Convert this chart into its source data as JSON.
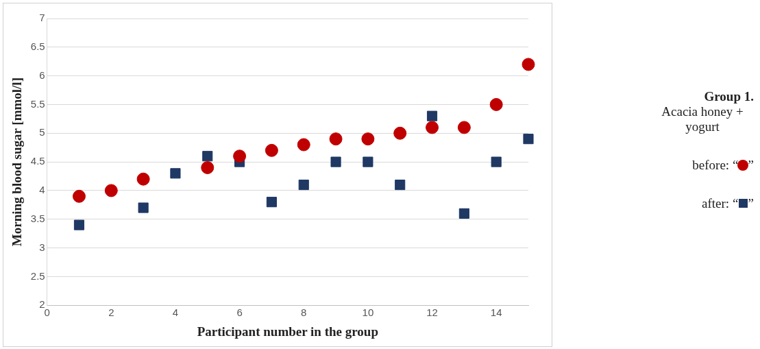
{
  "chart_data": {
    "type": "scatter",
    "xlabel": "Participant number in the group",
    "ylabel": "Morning blood sugar [mmol/l]",
    "x": [
      1,
      2,
      3,
      4,
      5,
      6,
      7,
      8,
      9,
      10,
      11,
      12,
      13,
      14,
      15
    ],
    "series": [
      {
        "name": "before: “   ”",
        "color": "#c00000",
        "marker": "circle",
        "values": [
          3.9,
          4.0,
          4.2,
          null,
          4.4,
          4.6,
          4.7,
          4.8,
          4.9,
          4.9,
          5.0,
          5.1,
          5.1,
          5.5,
          6.2
        ]
      },
      {
        "name": "after: “   ”",
        "color": "#1f3864",
        "marker": "square",
        "values": [
          3.4,
          null,
          3.7,
          4.3,
          4.6,
          4.5,
          3.8,
          4.1,
          4.5,
          4.5,
          4.1,
          5.3,
          3.6,
          4.5,
          4.9
        ]
      }
    ],
    "xlim": [
      0,
      15
    ],
    "xticks": [
      0,
      2,
      4,
      6,
      8,
      10,
      12,
      14
    ],
    "ylim": [
      2,
      7
    ],
    "yticks": [
      2,
      2.5,
      3,
      3.5,
      4,
      4.5,
      5,
      5.5,
      6,
      6.5,
      7
    ],
    "grid": "y",
    "legend": "right",
    "legend_title": "Group 1.",
    "annotations": [
      "Acacia honey + yogurt"
    ]
  }
}
